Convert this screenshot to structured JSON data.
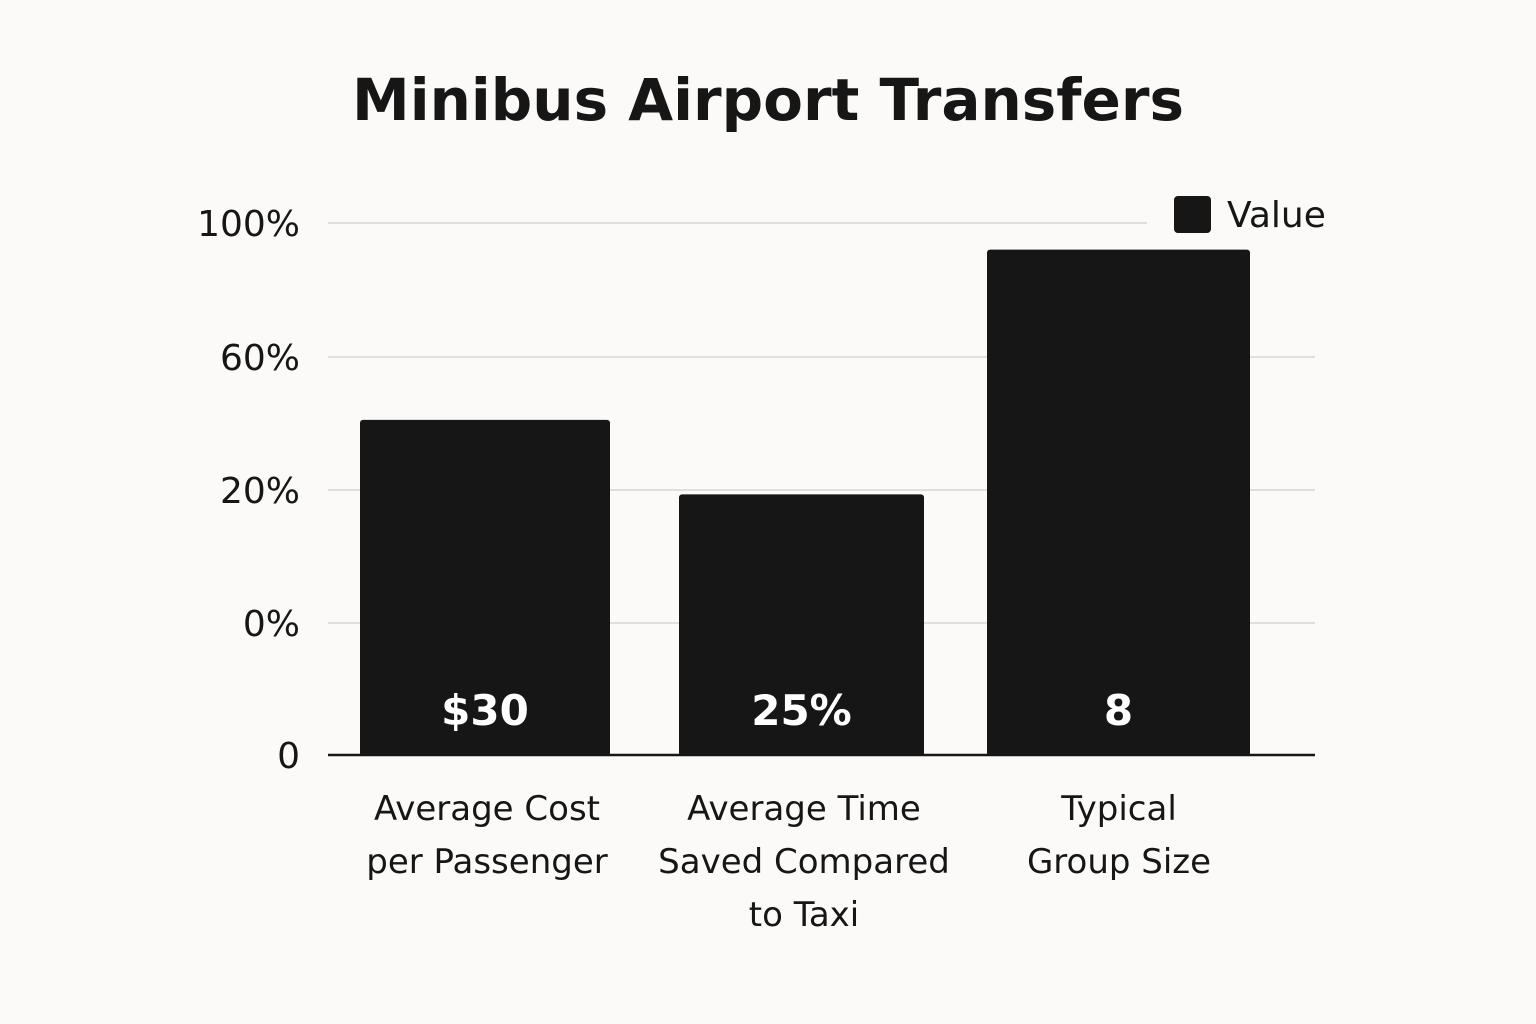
{
  "chart_data": {
    "type": "bar",
    "title": "Minibus Airport Transfers",
    "xlabel": "",
    "ylabel": "",
    "y_ticks": [
      "100%",
      "60%",
      "20%",
      "0%",
      "0"
    ],
    "categories": [
      [
        "Average Cost",
        "per Passenger"
      ],
      [
        "Average Time",
        "Saved Compared",
        "to Taxi"
      ],
      [
        "Typical",
        "Group Size"
      ]
    ],
    "series": [
      {
        "name": "Value",
        "color": "#161616",
        "values": [
          30,
          25,
          8
        ],
        "bar_fraction": [
          0.63,
          0.49,
          0.95
        ],
        "data_labels": [
          "$30",
          "25%",
          "8"
        ]
      }
    ],
    "grid": true,
    "legend": "top-right"
  }
}
